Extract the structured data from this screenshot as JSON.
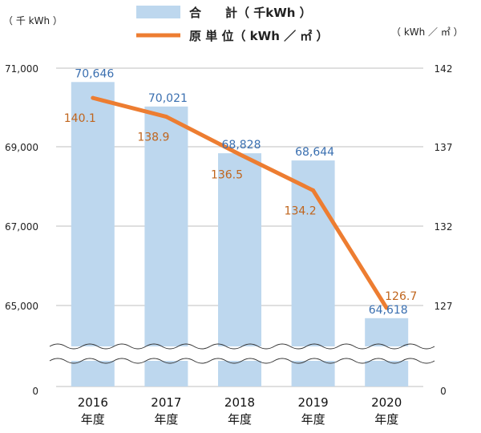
{
  "chart_data": {
    "type": "bar",
    "categories": [
      "2016",
      "2017",
      "2018",
      "2019",
      "2020"
    ],
    "category_suffix": "年度",
    "left_unit": "（ 千 kWh ）",
    "right_unit": "（ kWh ／ ㎡ ）",
    "left_ticks": [
      "71,000",
      "69,000",
      "67,000",
      "65,000",
      "0"
    ],
    "right_ticks": [
      "142",
      "137",
      "132",
      "127",
      "0"
    ],
    "left_range": [
      64000,
      71000
    ],
    "right_range": [
      124.5,
      142
    ],
    "axis_break": true,
    "grid": true,
    "legend_position": "top",
    "series": [
      {
        "name": "合　　計（ 千kWh ）",
        "type": "bar",
        "axis": "left",
        "values": [
          70646,
          70021,
          68828,
          68644,
          64618
        ],
        "labels": [
          "70,646",
          "70,021",
          "68,828",
          "68,644",
          "64,618"
        ],
        "color": "#bdd7ee",
        "label_color": "#3a6fb0"
      },
      {
        "name": "原 単 位（ kWh ／ ㎡ ）",
        "type": "line",
        "axis": "right",
        "values": [
          140.1,
          138.9,
          136.5,
          134.2,
          126.7
        ],
        "labels": [
          "140.1",
          "138.9",
          "136.5",
          "134.2",
          "126.7"
        ],
        "color": "#ed7d31",
        "label_color": "#c0651d"
      }
    ]
  }
}
